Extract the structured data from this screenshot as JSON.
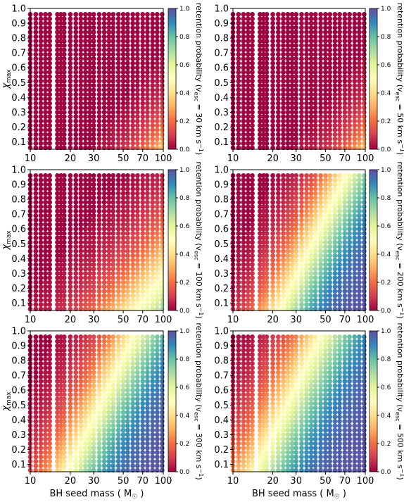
{
  "chart_data": [
    {
      "type": "scatter",
      "panel": "top-left",
      "xlabel": "",
      "ylabel": "χ_max",
      "colorbar_label": "retention probability (v_esc = 30 km s⁻¹)",
      "v_esc": 30,
      "a0": -1.45,
      "b0": 0.18,
      "w": 0.23,
      "x_scale": "log",
      "xlim": [
        10,
        100
      ],
      "ylim": [
        0.05,
        1.0
      ],
      "x_ticks": [
        "10",
        "20",
        "30",
        "50",
        "70",
        "100"
      ],
      "y_ticks": [
        "0.1",
        "0.2",
        "0.3",
        "0.4",
        "0.5",
        "0.6",
        "0.7",
        "0.8",
        "0.9",
        "1.0"
      ],
      "cb_ticks": [
        "0.0",
        "0.2",
        "0.4",
        "0.6",
        "0.8",
        "1.0"
      ],
      "colormap": "Spectral"
    },
    {
      "type": "scatter",
      "panel": "top-right",
      "xlabel": "",
      "ylabel": "",
      "colorbar_label": "retention probability (v_esc = 50 km s⁻¹)",
      "v_esc": 50,
      "a0": -1.45,
      "b0": 0.18,
      "w": 0.23,
      "x_scale": "log",
      "xlim": [
        10,
        100
      ],
      "ylim": [
        0.05,
        1.0
      ],
      "x_ticks": [
        "10",
        "20",
        "30",
        "50",
        "70",
        "100"
      ],
      "y_ticks": [
        "0.1",
        "0.2",
        "0.3",
        "0.4",
        "0.5",
        "0.6",
        "0.7",
        "0.8",
        "0.9",
        "1.0"
      ],
      "cb_ticks": [
        "0.0",
        "0.2",
        "0.4",
        "0.6",
        "0.8",
        "1.0"
      ],
      "colormap": "Spectral"
    },
    {
      "type": "scatter",
      "panel": "middle-left",
      "xlabel": "",
      "ylabel": "χ_max",
      "colorbar_label": "retention probability (v_esc = 100 km s⁻¹)",
      "v_esc": 100,
      "a0": -1.0,
      "b0": 0.14,
      "w": 0.3,
      "x_scale": "log",
      "xlim": [
        10,
        100
      ],
      "ylim": [
        0.05,
        1.0
      ],
      "x_ticks": [
        "10",
        "20",
        "30",
        "50",
        "70",
        "100"
      ],
      "y_ticks": [
        "0.1",
        "0.2",
        "0.3",
        "0.4",
        "0.5",
        "0.6",
        "0.7",
        "0.8",
        "0.9",
        "1.0"
      ],
      "cb_ticks": [
        "0.0",
        "0.2",
        "0.4",
        "0.6",
        "0.8",
        "1.0"
      ],
      "colormap": "Spectral"
    },
    {
      "type": "scatter",
      "panel": "middle-right",
      "xlabel": "",
      "ylabel": "",
      "colorbar_label": "retention probability (v_esc = 200 km s⁻¹)",
      "v_esc": 200,
      "a0": -0.7,
      "b0": 0.98,
      "w": 0.3,
      "x_scale": "log",
      "xlim": [
        10,
        100
      ],
      "ylim": [
        0.05,
        1.0
      ],
      "x_ticks": [
        "10",
        "20",
        "30",
        "50",
        "70",
        "100"
      ],
      "y_ticks": [
        "0.1",
        "0.2",
        "0.3",
        "0.4",
        "0.5",
        "0.6",
        "0.7",
        "0.8",
        "0.9",
        "1.0"
      ],
      "cb_ticks": [
        "0.0",
        "0.2",
        "0.4",
        "0.6",
        "0.8",
        "1.0"
      ],
      "colormap": "Spectral"
    },
    {
      "type": "scatter",
      "panel": "bottom-left",
      "xlabel": "BH seed mass ( M_☉ )",
      "ylabel": "χ_max",
      "colorbar_label": "retention probability (v_esc = 300 km s⁻¹)",
      "v_esc": 300,
      "a0": -0.55,
      "b0": 1.0,
      "w": 0.33,
      "x_scale": "log",
      "xlim": [
        10,
        100
      ],
      "ylim": [
        0.05,
        1.0
      ],
      "x_ticks": [
        "10",
        "20",
        "30",
        "50",
        "70",
        "100"
      ],
      "y_ticks": [
        "0.1",
        "0.2",
        "0.3",
        "0.4",
        "0.5",
        "0.6",
        "0.7",
        "0.8",
        "0.9",
        "1.0"
      ],
      "cb_ticks": [
        "0.0",
        "0.2",
        "0.4",
        "0.6",
        "0.8",
        "1.0"
      ],
      "colormap": "Spectral"
    },
    {
      "type": "scatter",
      "panel": "bottom-right",
      "xlabel": "BH seed mass ( M_☉ )",
      "ylabel": "",
      "colorbar_label": "retention probability (v_esc = 500 km s⁻¹)",
      "v_esc": 500,
      "a0": -0.3,
      "b0": 1.0,
      "w": 0.35,
      "x_scale": "log",
      "xlim": [
        10,
        100
      ],
      "ylim": [
        0.05,
        1.0
      ],
      "x_ticks": [
        "10",
        "20",
        "30",
        "50",
        "70",
        "100"
      ],
      "y_ticks": [
        "0.1",
        "0.2",
        "0.3",
        "0.4",
        "0.5",
        "0.6",
        "0.7",
        "0.8",
        "0.9",
        "1.0"
      ],
      "cb_ticks": [
        "0.0",
        "0.2",
        "0.4",
        "0.6",
        "0.8",
        "1.0"
      ],
      "colormap": "Spectral"
    }
  ],
  "strings": {
    "xlabel_text": "BH seed mass ( M",
    "xlabel_sub": "☉",
    "xlabel_close": " )",
    "ylabel_chi": "χ",
    "ylabel_sub": "max",
    "cb_prefix": "retention probability (v",
    "cb_sub": "esc",
    "cb_unit": " km s",
    "cb_sup": "−1",
    "cb_close": ")"
  },
  "grid_points": {
    "masses": [
      10,
      11,
      12,
      13,
      14,
      16,
      17,
      18,
      20,
      22,
      24,
      26,
      28,
      30,
      33,
      36,
      39,
      42,
      46,
      50,
      54,
      59,
      64,
      70,
      76,
      83,
      90,
      98
    ],
    "spins": [
      0.06,
      0.09,
      0.12,
      0.15,
      0.18,
      0.21,
      0.24,
      0.27,
      0.3,
      0.33,
      0.36,
      0.39,
      0.42,
      0.45,
      0.48,
      0.51,
      0.54,
      0.57,
      0.6,
      0.63,
      0.66,
      0.69,
      0.72,
      0.75,
      0.78,
      0.81,
      0.84,
      0.87,
      0.9,
      0.93,
      0.96
    ]
  }
}
